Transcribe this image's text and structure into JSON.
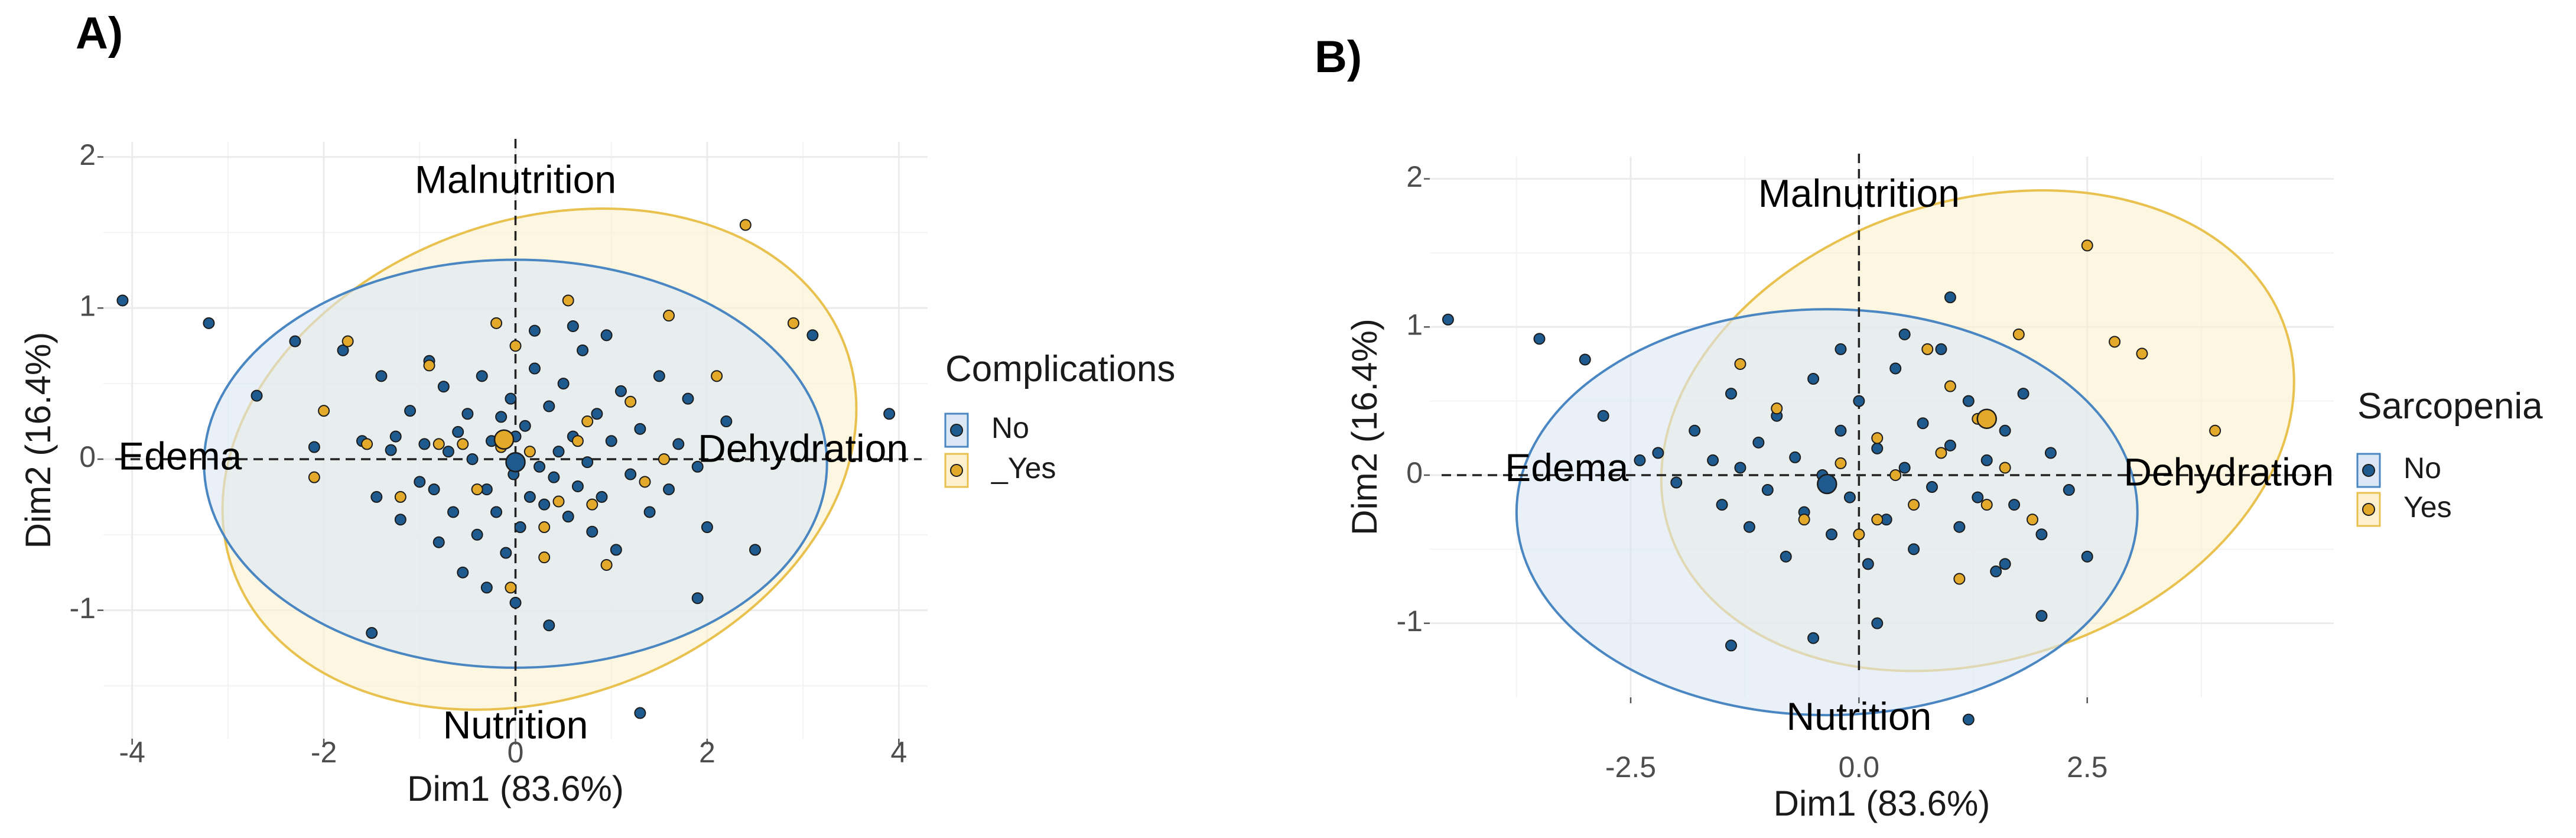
{
  "colors": {
    "no": "#1f5a8e",
    "yes": "#e3a92a",
    "no_fill": "#dbe7f4",
    "yes_fill": "#fcf0cf",
    "no_line": "#4a87c2",
    "yes_line": "#e8c14f",
    "grid": "#ebebeb"
  },
  "chart_data": [
    {
      "type": "scatter",
      "panel_label": "A)",
      "xlabel": "Dim1 (83.6%)",
      "ylabel": "Dim2 (16.4%)",
      "xlim": [
        -4.3,
        4.3
      ],
      "ylim": [
        -1.85,
        2.1
      ],
      "xticks": [
        -4,
        -2,
        0,
        2,
        4
      ],
      "xtick_labels": [
        "-4",
        "-2",
        "0",
        "2",
        "4"
      ],
      "yticks": [
        -1,
        0,
        1,
        2
      ],
      "ytick_labels": [
        "-1",
        "0",
        "1",
        "2"
      ],
      "legend": {
        "title": "Complications",
        "position": "right",
        "entries": [
          "No",
          "_Yes"
        ]
      },
      "annotations": [
        {
          "text": "Malnutrition",
          "x": 0.0,
          "y": 1.83
        },
        {
          "text": "Nutrition",
          "x": 0.0,
          "y": -1.78
        },
        {
          "text": "Edema",
          "x": -3.5,
          "y": 0.0
        },
        {
          "text": "Dehydration",
          "x": 3.0,
          "y": 0.05
        }
      ],
      "ellipses": [
        {
          "group": "No",
          "cx": 0.0,
          "cy": -0.03,
          "rx": 3.25,
          "ry": 1.35,
          "angle_deg": 0
        },
        {
          "group": "Yes",
          "cx": 0.25,
          "cy": 0.0,
          "rx": 3.4,
          "ry": 1.58,
          "angle_deg": 20
        }
      ],
      "centroids": [
        {
          "group": "No",
          "x": 0.0,
          "y": -0.02
        },
        {
          "group": "Yes",
          "x": -0.12,
          "y": 0.13
        }
      ],
      "series": [
        {
          "name": "No",
          "points": [
            [
              -4.1,
              1.05
            ],
            [
              -3.2,
              0.9
            ],
            [
              -2.7,
              0.42
            ],
            [
              -2.3,
              0.78
            ],
            [
              -2.1,
              0.08
            ],
            [
              -1.8,
              0.72
            ],
            [
              -1.6,
              0.12
            ],
            [
              -1.45,
              -0.25
            ],
            [
              -1.4,
              0.55
            ],
            [
              -1.3,
              0.06
            ],
            [
              -1.25,
              0.15
            ],
            [
              -1.2,
              -0.4
            ],
            [
              -1.1,
              0.32
            ],
            [
              -1.0,
              -0.15
            ],
            [
              -0.95,
              0.1
            ],
            [
              -0.9,
              0.65
            ],
            [
              -0.85,
              -0.2
            ],
            [
              -0.8,
              -0.55
            ],
            [
              -0.75,
              0.48
            ],
            [
              -0.7,
              0.05
            ],
            [
              -0.65,
              -0.35
            ],
            [
              -0.6,
              0.18
            ],
            [
              -0.55,
              -0.75
            ],
            [
              -0.5,
              0.3
            ],
            [
              -0.45,
              0.0
            ],
            [
              -0.4,
              -0.5
            ],
            [
              -0.35,
              0.55
            ],
            [
              -0.3,
              -0.2
            ],
            [
              -0.25,
              0.12
            ],
            [
              -0.2,
              -0.35
            ],
            [
              -0.15,
              0.28
            ],
            [
              -0.1,
              -0.62
            ],
            [
              -0.05,
              0.4
            ],
            [
              -0.02,
              -0.1
            ],
            [
              0.0,
              0.15
            ],
            [
              0.05,
              -0.45
            ],
            [
              0.1,
              0.22
            ],
            [
              0.15,
              -0.25
            ],
            [
              0.2,
              0.6
            ],
            [
              0.25,
              -0.05
            ],
            [
              0.3,
              -0.3
            ],
            [
              0.35,
              0.35
            ],
            [
              0.4,
              -0.12
            ],
            [
              0.45,
              0.05
            ],
            [
              0.5,
              0.5
            ],
            [
              0.55,
              -0.38
            ],
            [
              0.6,
              0.15
            ],
            [
              0.65,
              -0.18
            ],
            [
              0.7,
              0.72
            ],
            [
              0.75,
              -0.02
            ],
            [
              0.8,
              -0.48
            ],
            [
              0.85,
              0.3
            ],
            [
              0.9,
              -0.25
            ],
            [
              0.95,
              0.82
            ],
            [
              1.0,
              0.12
            ],
            [
              1.05,
              -0.6
            ],
            [
              1.1,
              0.45
            ],
            [
              1.2,
              -0.1
            ],
            [
              1.3,
              0.2
            ],
            [
              1.4,
              -0.35
            ],
            [
              1.5,
              0.55
            ],
            [
              1.6,
              -0.2
            ],
            [
              1.7,
              0.1
            ],
            [
              1.8,
              0.4
            ],
            [
              1.9,
              -0.05
            ],
            [
              2.0,
              -0.45
            ],
            [
              2.2,
              0.25
            ],
            [
              2.5,
              -0.6
            ],
            [
              1.9,
              -0.92
            ],
            [
              3.1,
              0.82
            ],
            [
              3.9,
              0.3
            ],
            [
              1.3,
              -1.68
            ],
            [
              -1.5,
              -1.15
            ],
            [
              0.35,
              -1.1
            ],
            [
              0.2,
              0.85
            ],
            [
              0.0,
              -0.95
            ],
            [
              -0.3,
              -0.85
            ],
            [
              0.6,
              0.88
            ]
          ]
        },
        {
          "name": "Yes",
          "points": [
            [
              -2.0,
              0.32
            ],
            [
              -2.1,
              -0.12
            ],
            [
              -1.75,
              0.78
            ],
            [
              -1.55,
              0.1
            ],
            [
              -1.2,
              -0.25
            ],
            [
              -0.8,
              0.1
            ],
            [
              -0.55,
              0.1
            ],
            [
              -0.4,
              -0.2
            ],
            [
              -0.2,
              0.9
            ],
            [
              -0.15,
              0.08
            ],
            [
              -0.05,
              -0.85
            ],
            [
              0.0,
              0.75
            ],
            [
              0.15,
              0.05
            ],
            [
              0.3,
              -0.45
            ],
            [
              0.45,
              -0.28
            ],
            [
              0.55,
              1.05
            ],
            [
              0.65,
              0.12
            ],
            [
              0.75,
              0.25
            ],
            [
              0.8,
              -0.3
            ],
            [
              0.95,
              -0.7
            ],
            [
              1.2,
              0.38
            ],
            [
              1.35,
              -0.15
            ],
            [
              1.55,
              0.0
            ],
            [
              1.6,
              0.95
            ],
            [
              2.1,
              0.55
            ],
            [
              2.4,
              1.55
            ],
            [
              2.9,
              0.9
            ],
            [
              0.3,
              -0.65
            ],
            [
              -0.9,
              0.62
            ]
          ]
        }
      ]
    },
    {
      "type": "scatter",
      "panel_label": "B)",
      "xlabel": "Dim1 (83.6%)",
      "ylabel": "Dim2 (16.4%)",
      "xlim": [
        -4.7,
        5.2
      ],
      "ylim": [
        -1.5,
        2.15
      ],
      "xticks": [
        -2.5,
        0.0,
        2.5
      ],
      "xtick_labels": [
        "-2.5",
        "0.0",
        "2.5"
      ],
      "yticks": [
        -1,
        0,
        1,
        2
      ],
      "ytick_labels": [
        "-1",
        "0",
        "1",
        "2"
      ],
      "legend": {
        "title": "Sarcopenia",
        "position": "right",
        "entries": [
          "No",
          "Yes"
        ]
      },
      "annotations": [
        {
          "text": "Malnutrition",
          "x": 0.0,
          "y": 1.88
        },
        {
          "text": "Nutrition",
          "x": 0.0,
          "y": -1.65
        },
        {
          "text": "Edema",
          "x": -3.2,
          "y": 0.03
        },
        {
          "text": "Dehydration",
          "x": 4.05,
          "y": 0.0
        }
      ],
      "ellipses": [
        {
          "group": "No",
          "cx": -0.35,
          "cy": -0.25,
          "rx": 3.4,
          "ry": 1.37,
          "angle_deg": 0
        },
        {
          "group": "Yes",
          "cx": 1.3,
          "cy": 0.3,
          "rx": 3.55,
          "ry": 1.55,
          "angle_deg": 18
        }
      ],
      "centroids": [
        {
          "group": "No",
          "x": -0.35,
          "y": -0.06
        },
        {
          "group": "Yes",
          "x": 1.4,
          "y": 0.38
        }
      ],
      "series": [
        {
          "name": "No",
          "points": [
            [
              -4.5,
              1.05
            ],
            [
              -3.5,
              0.92
            ],
            [
              -3.0,
              0.78
            ],
            [
              -2.8,
              0.4
            ],
            [
              -2.4,
              0.1
            ],
            [
              -2.2,
              0.15
            ],
            [
              -2.0,
              -0.05
            ],
            [
              -1.8,
              0.3
            ],
            [
              -1.6,
              0.1
            ],
            [
              -1.5,
              -0.2
            ],
            [
              -1.4,
              0.55
            ],
            [
              -1.3,
              0.05
            ],
            [
              -1.2,
              -0.35
            ],
            [
              -1.1,
              0.22
            ],
            [
              -1.0,
              -0.1
            ],
            [
              -0.9,
              0.4
            ],
            [
              -0.8,
              -0.55
            ],
            [
              -0.7,
              0.12
            ],
            [
              -0.6,
              -0.25
            ],
            [
              -0.5,
              0.65
            ],
            [
              -0.4,
              0.0
            ],
            [
              -0.3,
              -0.4
            ],
            [
              -0.2,
              0.3
            ],
            [
              -0.1,
              -0.15
            ],
            [
              0.0,
              0.5
            ],
            [
              0.1,
              -0.6
            ],
            [
              0.2,
              0.18
            ],
            [
              0.3,
              -0.3
            ],
            [
              0.4,
              0.72
            ],
            [
              0.5,
              0.05
            ],
            [
              0.6,
              -0.5
            ],
            [
              0.7,
              0.35
            ],
            [
              0.8,
              -0.08
            ],
            [
              0.9,
              0.85
            ],
            [
              1.0,
              0.2
            ],
            [
              1.1,
              -0.35
            ],
            [
              1.2,
              0.5
            ],
            [
              1.3,
              -0.15
            ],
            [
              1.4,
              0.1
            ],
            [
              1.5,
              -0.65
            ],
            [
              1.6,
              0.3
            ],
            [
              1.7,
              -0.2
            ],
            [
              1.8,
              0.55
            ],
            [
              2.0,
              -0.4
            ],
            [
              2.1,
              0.15
            ],
            [
              2.3,
              -0.1
            ],
            [
              2.5,
              -0.55
            ],
            [
              1.0,
              1.2
            ],
            [
              -0.5,
              -1.1
            ],
            [
              1.2,
              -1.65
            ],
            [
              -1.4,
              -1.15
            ],
            [
              0.2,
              -1.0
            ],
            [
              1.6,
              -0.6
            ],
            [
              2.0,
              -0.95
            ],
            [
              -0.2,
              0.85
            ],
            [
              0.5,
              0.95
            ]
          ]
        },
        {
          "name": "Yes",
          "points": [
            [
              -1.3,
              0.75
            ],
            [
              -0.9,
              0.45
            ],
            [
              -0.6,
              -0.3
            ],
            [
              -0.2,
              0.08
            ],
            [
              0.0,
              -0.4
            ],
            [
              0.2,
              0.25
            ],
            [
              0.4,
              0.0
            ],
            [
              0.6,
              -0.2
            ],
            [
              0.75,
              0.85
            ],
            [
              0.9,
              0.15
            ],
            [
              1.1,
              -0.7
            ],
            [
              1.3,
              0.38
            ],
            [
              1.4,
              -0.2
            ],
            [
              1.6,
              0.05
            ],
            [
              1.75,
              0.95
            ],
            [
              2.5,
              1.55
            ],
            [
              2.8,
              0.9
            ],
            [
              3.1,
              0.82
            ],
            [
              3.9,
              0.3
            ],
            [
              0.2,
              -0.3
            ],
            [
              1.0,
              0.6
            ],
            [
              1.9,
              -0.3
            ]
          ]
        }
      ]
    }
  ]
}
